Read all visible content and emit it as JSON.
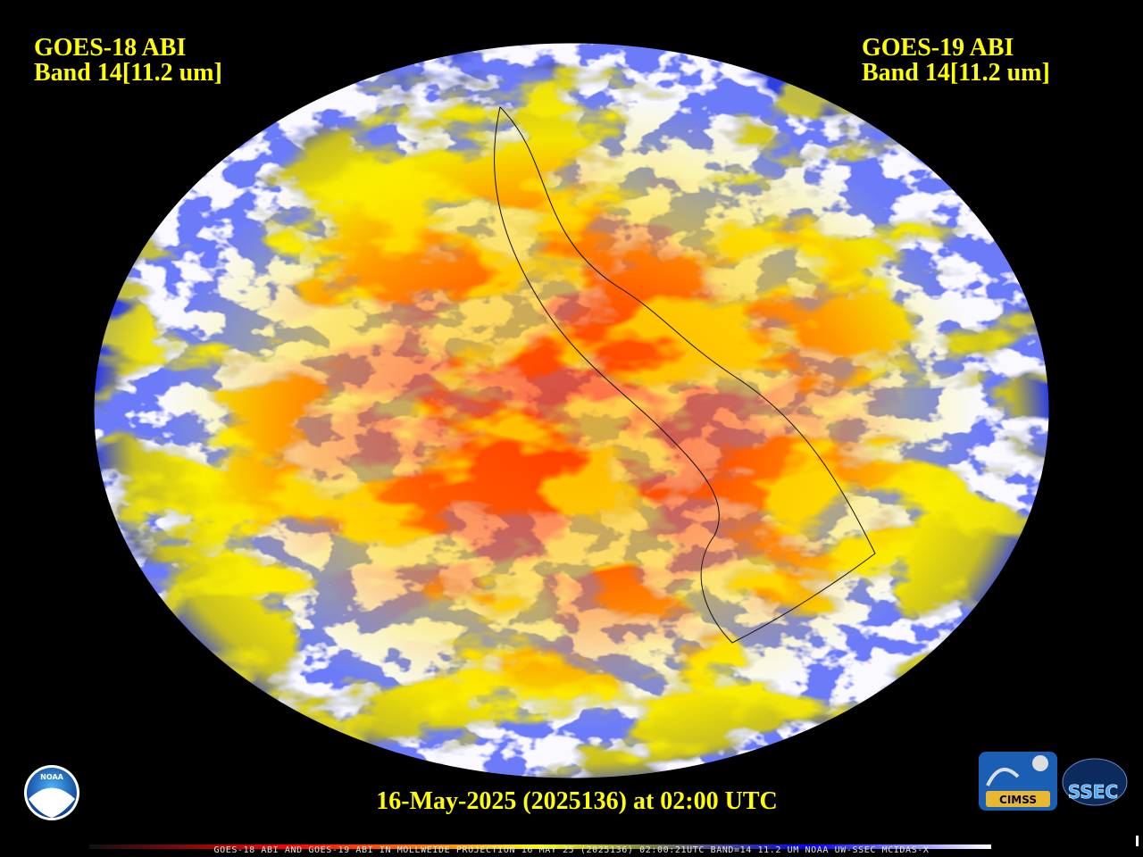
{
  "header": {
    "left_title": "GOES-18 ABI",
    "left_band": "Band 14[11.2 um]",
    "right_title": "GOES-19 ABI",
    "right_band": "Band 14[11.2 um]"
  },
  "timestamp": "16-May-2025 (2025136) at 02:00 UTC",
  "footer": "GOES-18 ABI AND GOES-19 ABI IN MOLLWEIDE PROJECTION 16 MAY 25 (2025136) 02:00:21UTC BAND=14 11.2 UM NOAA UW-SSEC MCIDAS-X",
  "logos": {
    "noaa": "NOAA",
    "cimss": "CIMSS",
    "ssec": "SSEC"
  }
}
